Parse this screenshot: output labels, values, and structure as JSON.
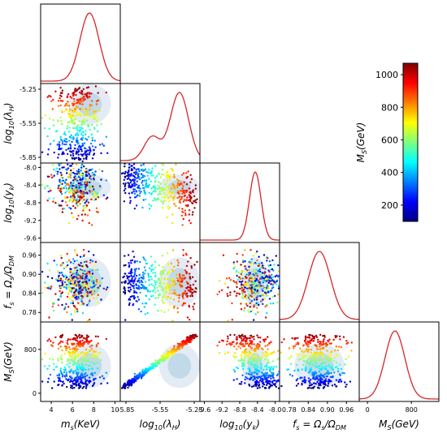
{
  "chart_data": {
    "type": "scatter",
    "title": "",
    "parameters": [
      {
        "key": "ms",
        "label": "m_s(KeV)",
        "range": [
          3,
          10.5
        ],
        "ticks": [
          4,
          6,
          8,
          10
        ],
        "tick_labels": [
          "4",
          "6",
          "8",
          "10"
        ],
        "peak": 7.6,
        "width": 0.9
      },
      {
        "key": "lamH",
        "label": "log_10(λ_H)",
        "range": [
          -5.9,
          -5.2
        ],
        "ticks": [
          -5.85,
          -5.55,
          -5.25
        ],
        "tick_labels": [
          "-5.85",
          "-5.55",
          "-5.25"
        ],
        "peak": -5.38,
        "width": 0.08
      },
      {
        "key": "yk",
        "label": "log_10(y_k)",
        "range": [
          -9.7,
          -7.9
        ],
        "ticks": [
          -9.6,
          -9.2,
          -8.8,
          -8.4,
          -8.0
        ],
        "tick_labels": [
          "-9.6",
          "-9.2",
          "-8.8",
          "-8.4",
          "-8.0"
        ],
        "peak": -8.45,
        "width": 0.13
      },
      {
        "key": "fs",
        "label": "f_s = Ω_s/Ω_DM",
        "range": [
          0.75,
          1.0
        ],
        "ticks": [
          0.78,
          0.84,
          0.9,
          0.96
        ],
        "tick_labels": [
          "0.78",
          "0.84",
          "0.90",
          "0.96"
        ],
        "peak": 0.875,
        "width": 0.035
      },
      {
        "key": "MS",
        "label": "M_S(GeV)",
        "range": [
          -150,
          1300
        ],
        "ticks": [
          0,
          800
        ],
        "tick_labels": [
          "0",
          "800"
        ],
        "peak": 500,
        "width": 180
      }
    ],
    "colorbar": {
      "label": "M_S(GeV)",
      "range": [
        100,
        1070
      ],
      "ticks": [
        200,
        400,
        600,
        800,
        1000
      ],
      "tick_labels": [
        "200",
        "400",
        "600",
        "800",
        "1000"
      ],
      "colormap": [
        "#00007f",
        "#0000ff",
        "#007fff",
        "#00ffff",
        "#7fff7f",
        "#ffff00",
        "#ff7f00",
        "#ff0000",
        "#7f0000"
      ]
    },
    "colors": {
      "kde_line": "#d62728",
      "contour": "#c8d8ec"
    },
    "n_points": 420
  }
}
